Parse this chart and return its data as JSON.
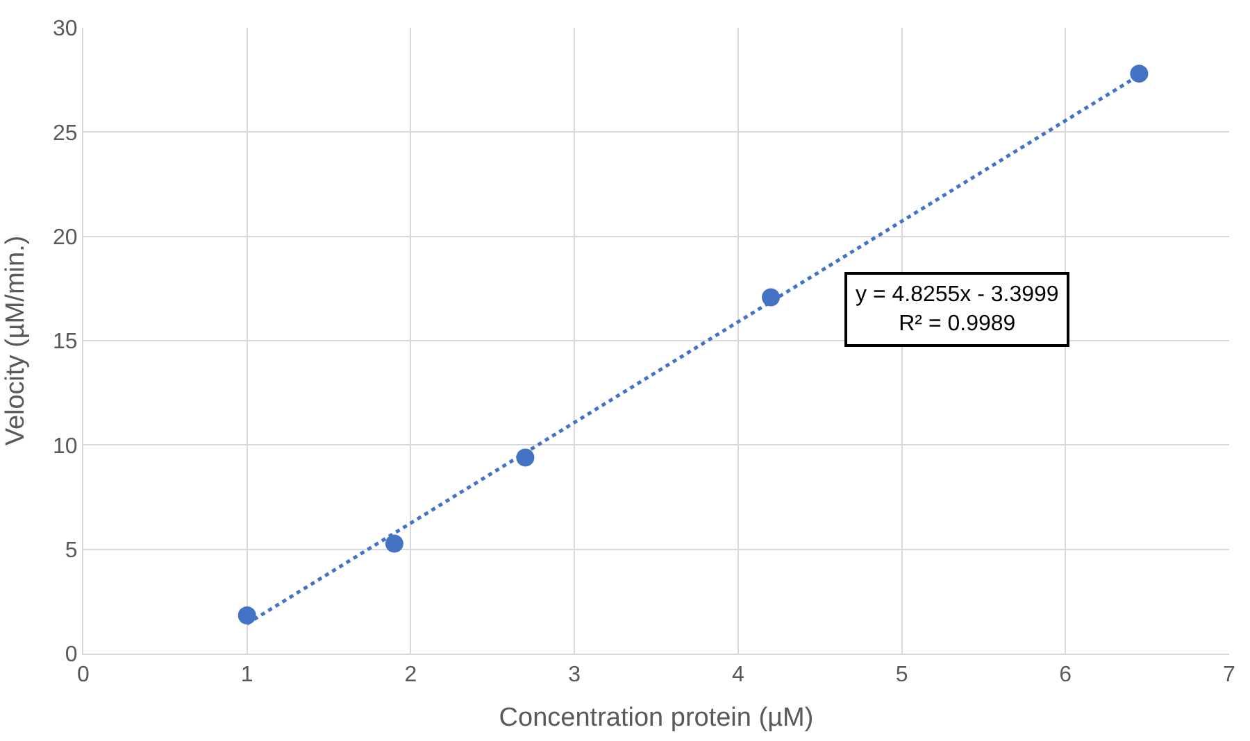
{
  "chart_data": {
    "type": "scatter",
    "xlabel": "Concentration protein (µM)",
    "ylabel": "Velocity (µM/min.)",
    "series": [
      {
        "color": "#4472c4",
        "x": [
          1,
          1.9,
          2.7,
          4.2,
          6.45
        ],
        "values": [
          1.83,
          5.27,
          9.4,
          17.08,
          27.8
        ],
        "marker": "circle"
      },
      {
        "type": "line",
        "color": "#4472c4",
        "x": [
          1,
          6.45
        ],
        "values": [
          1.43,
          27.72
        ],
        "line_style": "dotted",
        "marker": "none"
      }
    ],
    "annotations": [
      "y = 4.8255x - 3.3999\nR² = 0.9989"
    ],
    "xlim": [
      0,
      7
    ],
    "xticks": [
      0,
      1,
      2,
      3,
      4,
      5,
      6,
      7
    ],
    "ylim": [
      0,
      30
    ],
    "yticks": [
      0,
      5,
      10,
      15,
      20,
      25,
      30
    ],
    "grid": true,
    "legend": false
  }
}
